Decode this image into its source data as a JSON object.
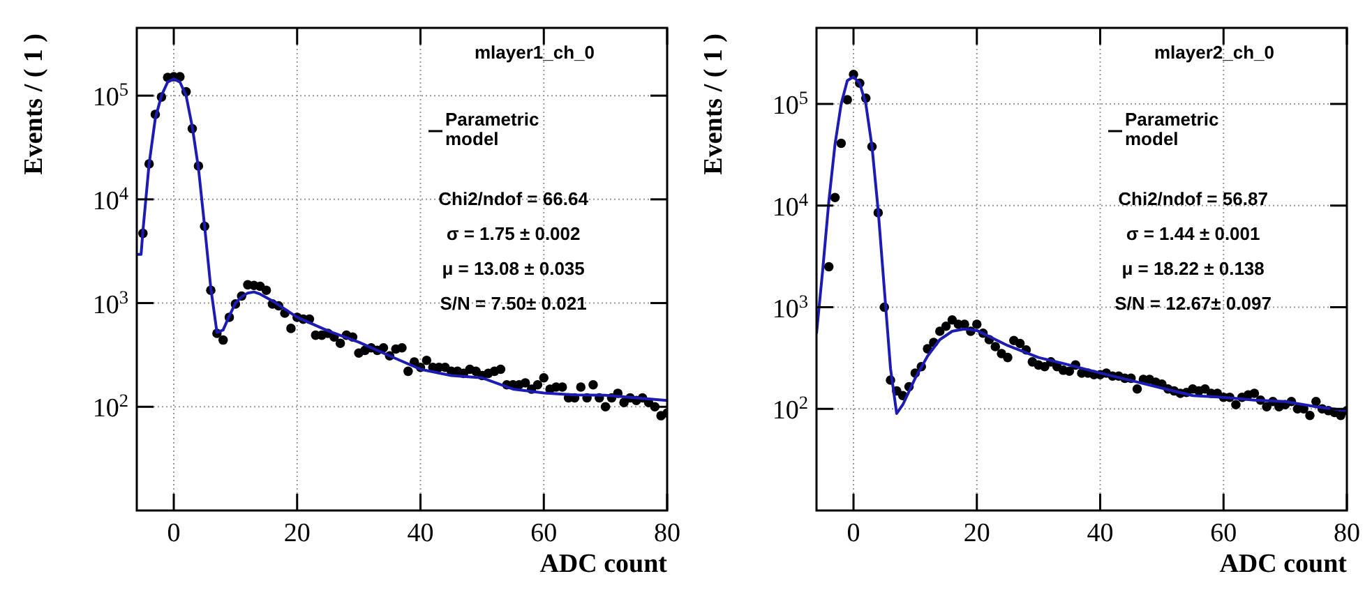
{
  "chart_data": [
    {
      "type": "scatter",
      "title": "mlayer1_ch_0",
      "xlabel": "ADC count",
      "ylabel": "Events / ( 1 )",
      "log": "y",
      "grid": true,
      "legend": "top right",
      "xlim": [
        -6,
        80
      ],
      "xticks": [
        0,
        20,
        40,
        60,
        80
      ],
      "ylim": [
        10,
        450000
      ],
      "yticks": [
        {
          "value": 100,
          "label": "10$^{2}$"
        },
        {
          "value": 1000,
          "label": "10$^{3}$"
        },
        {
          "value": 10000,
          "label": "10$^{4}$"
        },
        {
          "value": 100000,
          "label": "10$^{5}$"
        }
      ],
      "annotations": [
        "Chi2/ndof = 66.64",
        "σ = 1.75 ± 0.002",
        "μ = 13.08 ± 0.035",
        "S/N = 7.50± 0.021"
      ],
      "series": [
        {
          "marker": "circle",
          "color": "#000000",
          "x": [
            -5,
            -4,
            -3,
            -2,
            -1,
            0,
            1,
            2,
            3,
            4,
            5,
            6,
            7,
            8,
            9,
            10,
            11,
            12,
            13,
            14,
            15,
            16,
            17,
            18,
            19,
            20,
            21,
            22,
            23,
            24,
            25,
            26,
            27,
            28,
            29,
            30,
            31,
            32,
            33,
            34,
            35,
            36,
            37,
            38,
            39,
            40,
            41,
            42,
            43,
            44,
            45,
            46,
            47,
            48,
            49,
            50,
            51,
            52,
            53,
            54,
            55,
            56,
            57,
            58,
            59,
            60,
            61,
            62,
            63,
            64,
            65,
            66,
            67,
            68,
            69,
            70,
            71,
            72,
            73,
            74,
            75,
            76,
            77,
            78,
            79,
            80
          ],
          "values": [
            4700,
            22000,
            66000,
            97000,
            150000,
            152000,
            152000,
            109000,
            48000,
            21000,
            5500,
            1330,
            510,
            440,
            730,
            980,
            1170,
            1500,
            1480,
            1450,
            1330,
            980,
            940,
            800,
            570,
            730,
            700,
            700,
            490,
            490,
            510,
            470,
            410,
            490,
            470,
            330,
            350,
            370,
            350,
            370,
            310,
            360,
            370,
            220,
            270,
            240,
            280,
            240,
            240,
            240,
            220,
            220,
            210,
            230,
            220,
            200,
            210,
            220,
            230,
            163,
            163,
            163,
            170,
            148,
            163,
            190,
            148,
            155,
            155,
            122,
            122,
            155,
            122,
            163,
            122,
            100,
            122,
            135,
            110,
            122,
            115,
            122,
            110,
            100,
            82,
            87
          ]
        },
        {
          "type": "line",
          "name": "Parametric model",
          "color": "#1c1cb4",
          "x": [
            -6,
            -5.3,
            -5,
            -4,
            -3,
            -2,
            -1,
            0,
            1,
            2,
            3,
            4,
            5,
            6,
            7,
            8,
            9,
            10,
            11,
            12,
            13,
            14,
            16,
            20,
            25,
            30,
            35,
            40,
            45,
            50,
            55,
            60,
            65,
            70,
            75,
            80
          ],
          "values": [
            2950,
            2950,
            5000,
            22000,
            60000,
            100000,
            135000,
            145000,
            135000,
            100000,
            50000,
            20000,
            5500,
            1400,
            520,
            550,
            750,
            1000,
            1150,
            1250,
            1280,
            1220,
            1050,
            730,
            540,
            420,
            310,
            230,
            200,
            190,
            148,
            136,
            130,
            129,
            122,
            115
          ]
        }
      ]
    },
    {
      "type": "scatter",
      "title": "mlayer2_ch_0",
      "xlabel": "ADC count",
      "ylabel": "Events / ( 1 )",
      "log": "y",
      "grid": true,
      "legend": "top right",
      "xlim": [
        -6,
        80
      ],
      "xticks": [
        0,
        20,
        40,
        60,
        80
      ],
      "ylim": [
        10,
        560000
      ],
      "yticks": [
        {
          "value": 100,
          "label": "10$^{2}$"
        },
        {
          "value": 1000,
          "label": "10$^{3}$"
        },
        {
          "value": 10000,
          "label": "10$^{4}$"
        },
        {
          "value": 100000,
          "label": "10$^{5}$"
        }
      ],
      "annotations": [
        "Chi2/ndof = 56.87",
        "σ = 1.44 ± 0.001",
        "μ = 18.22 ± 0.138",
        "S/N = 12.67± 0.097"
      ],
      "series": [
        {
          "marker": "circle",
          "color": "#000000",
          "x": [
            -4,
            -3,
            -2,
            -1,
            0,
            1,
            2,
            3,
            4,
            5,
            6,
            7,
            8,
            9,
            10,
            11,
            12,
            13,
            14,
            15,
            16,
            17,
            18,
            19,
            20,
            21,
            22,
            23,
            24,
            25,
            26,
            27,
            28,
            29,
            30,
            31,
            32,
            33,
            34,
            35,
            36,
            37,
            38,
            39,
            40,
            41,
            42,
            43,
            44,
            45,
            46,
            47,
            48,
            49,
            50,
            51,
            52,
            53,
            54,
            55,
            56,
            57,
            58,
            59,
            60,
            61,
            62,
            63,
            64,
            65,
            66,
            67,
            68,
            69,
            70,
            71,
            72,
            73,
            74,
            75,
            76,
            77,
            78,
            79,
            80
          ],
          "values": [
            2500,
            12000,
            41000,
            110000,
            195000,
            160000,
            114000,
            38000,
            8500,
            1000,
            192,
            150,
            135,
            165,
            225,
            260,
            390,
            450,
            580,
            650,
            750,
            680,
            680,
            580,
            680,
            555,
            480,
            410,
            350,
            320,
            470,
            440,
            380,
            290,
            270,
            260,
            290,
            260,
            240,
            235,
            270,
            225,
            225,
            217,
            217,
            225,
            210,
            210,
            200,
            200,
            157,
            195,
            195,
            183,
            175,
            157,
            150,
            142,
            145,
            157,
            150,
            157,
            142,
            142,
            130,
            130,
            110,
            130,
            137,
            142,
            122,
            105,
            118,
            105,
            110,
            118,
            100,
            100,
            86,
            118,
            100,
            96,
            92,
            86,
            96
          ]
        },
        {
          "type": "line",
          "name": "Parametric model",
          "color": "#1c1cb4",
          "x": [
            -6,
            -5,
            -4,
            -3,
            -2,
            -1,
            0,
            1,
            2,
            3,
            4,
            5,
            6,
            7,
            8,
            10,
            12,
            14,
            16,
            18,
            20,
            25,
            30,
            35,
            40,
            45,
            50,
            55,
            60,
            65,
            70,
            75,
            80
          ],
          "values": [
            550,
            2300,
            11000,
            40000,
            100000,
            170000,
            185000,
            160000,
            100000,
            38000,
            9000,
            1500,
            250,
            90,
            110,
            200,
            330,
            480,
            580,
            610,
            590,
            420,
            320,
            270,
            225,
            190,
            160,
            135,
            130,
            122,
            118,
            105,
            96
          ]
        }
      ]
    }
  ]
}
